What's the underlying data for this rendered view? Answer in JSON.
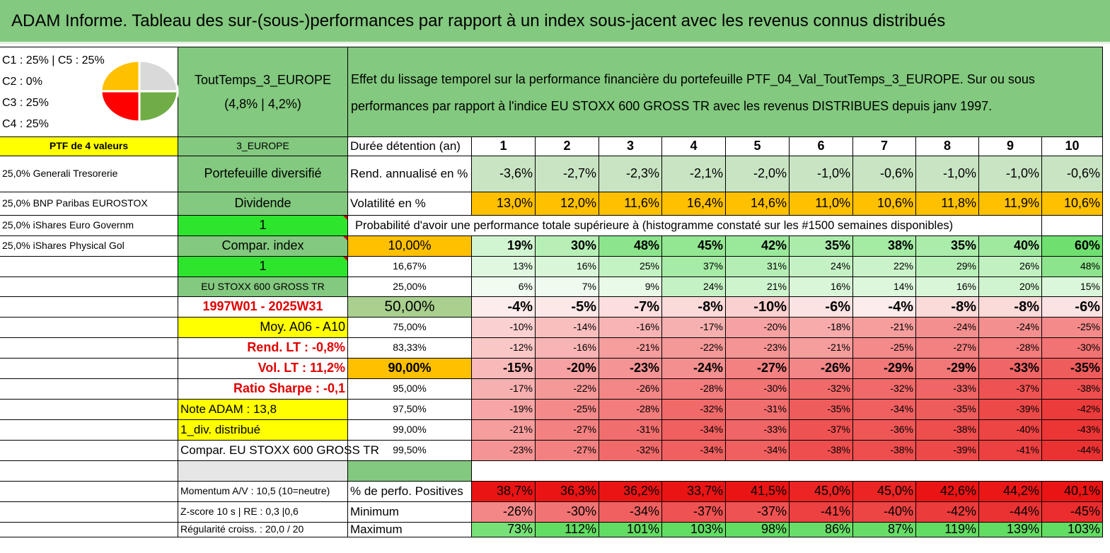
{
  "title": "ADAM Informe. Tableau des sur-(sous-)performances par rapport à un index sous-jacent avec les revenus connus distribués",
  "legend": {
    "lines": [
      "C1 : 25% | C5 : 25%",
      "C2 : 0%",
      "C3 : 25%",
      "C4 : 25%"
    ]
  },
  "pie": {
    "slices": [
      {
        "name": "C1",
        "value": 25,
        "color": "#ffc000"
      },
      {
        "name": "C5",
        "value": 25,
        "color": "#d9d9d9"
      },
      {
        "name": "C4",
        "value": 25,
        "color": "#70ad47"
      },
      {
        "name": "C3",
        "value": 25,
        "color": "#ff0000"
      }
    ]
  },
  "fund": {
    "name": "ToutTemps_3_EUROPE",
    "perf": "(4,8% | 4,2%)"
  },
  "description": "Effet du lissage temporel sur la performance financière du portefeuille PTF_04_Val_ToutTemps_3_EUROPE. Sur ou sous performances par rapport à l'indice EU STOXX 600 GROSS TR avec les revenus DISTRIBUES depuis janv 1997.",
  "colors": {
    "green_header": "#83c97f",
    "yellow": "#ffff00",
    "orange": "#ffc000",
    "bright_green": "#2ee52e",
    "red_text": "#e00000"
  },
  "table": {
    "ptf_label": "PTF de 4 valeurs",
    "region": "3_EUROPE",
    "duration_label": "Durée détention (an)",
    "years": [
      "1",
      "2",
      "3",
      "4",
      "5",
      "6",
      "7",
      "8",
      "9",
      "10"
    ],
    "holdings": [
      "25,0% Generali Tresorerie",
      "25,0% BNP Paribas EUROSTOX",
      "25,0% iShares Euro Governm",
      "25,0% iShares Physical Gol"
    ],
    "rend": {
      "label": "Rend. annualisé en %",
      "values": [
        "-3,6%",
        "-2,7%",
        "-2,3%",
        "-2,1%",
        "-2,0%",
        "-1,0%",
        "-0,6%",
        "-1,0%",
        "-1,0%",
        "-0,6%"
      ]
    },
    "vol": {
      "label": "Volatilité en %",
      "values": [
        "13,0%",
        "12,0%",
        "11,6%",
        "16,4%",
        "14,6%",
        "11,0%",
        "10,6%",
        "11,8%",
        "11,9%",
        "10,6%"
      ]
    },
    "prob_label": "Probabilité d'avoir une performance totale supérieure à (histogramme constaté sur les #1500 semaines disponibles)",
    "mid": {
      "portefeuille": "Portefeuille diversifié",
      "dividende": "Dividende",
      "one_a": "1",
      "compar": "Compar. index",
      "one_b": "1",
      "index": "EU STOXX 600 GROSS TR",
      "period": "1997W01 - 2025W31",
      "moy": "Moy. A06 - A10",
      "rend_lt": "Rend. LT : -0,8%",
      "vol_lt": "Vol. LT : 11,2%",
      "sharpe": "Ratio Sharpe : -0,1",
      "note": "Note ADAM : 13,8",
      "div": "1_div. distribué",
      "compar_full": "Compar. EU STOXX 600 GROSS TR",
      "momentum": "Momentum A/V : 10,5 (10=neutre)",
      "zscore": "Z-score 10 s | RE : 0,3 |0,6",
      "regularite": "Régularité croiss. : 20,0 / 20"
    },
    "percentile_rows": [
      {
        "p": "10,00%",
        "values": [
          "19%",
          "30%",
          "48%",
          "45%",
          "42%",
          "35%",
          "38%",
          "35%",
          "40%",
          "60%"
        ]
      },
      {
        "p": "16,67%",
        "values": [
          "13%",
          "16%",
          "25%",
          "37%",
          "31%",
          "24%",
          "22%",
          "29%",
          "26%",
          "48%"
        ]
      },
      {
        "p": "25,00%",
        "values": [
          "6%",
          "7%",
          "9%",
          "24%",
          "21%",
          "16%",
          "14%",
          "16%",
          "20%",
          "15%"
        ]
      },
      {
        "p": "50,00%",
        "values": [
          "-4%",
          "-5%",
          "-7%",
          "-8%",
          "-10%",
          "-6%",
          "-4%",
          "-8%",
          "-8%",
          "-6%"
        ]
      },
      {
        "p": "75,00%",
        "values": [
          "-10%",
          "-14%",
          "-16%",
          "-17%",
          "-20%",
          "-18%",
          "-21%",
          "-24%",
          "-24%",
          "-25%"
        ]
      },
      {
        "p": "83,33%",
        "values": [
          "-12%",
          "-16%",
          "-21%",
          "-22%",
          "-23%",
          "-21%",
          "-25%",
          "-27%",
          "-28%",
          "-30%"
        ]
      },
      {
        "p": "90,00%",
        "values": [
          "-15%",
          "-20%",
          "-23%",
          "-24%",
          "-27%",
          "-26%",
          "-29%",
          "-29%",
          "-33%",
          "-35%"
        ]
      },
      {
        "p": "95,00%",
        "values": [
          "-17%",
          "-22%",
          "-26%",
          "-28%",
          "-30%",
          "-32%",
          "-32%",
          "-33%",
          "-37%",
          "-38%"
        ]
      },
      {
        "p": "97,50%",
        "values": [
          "-19%",
          "-25%",
          "-28%",
          "-32%",
          "-31%",
          "-35%",
          "-34%",
          "-35%",
          "-39%",
          "-42%"
        ]
      },
      {
        "p": "99,00%",
        "values": [
          "-21%",
          "-27%",
          "-31%",
          "-34%",
          "-33%",
          "-37%",
          "-36%",
          "-38%",
          "-40%",
          "-43%"
        ]
      },
      {
        "p": "99,50%",
        "values": [
          "-23%",
          "-27%",
          "-32%",
          "-34%",
          "-34%",
          "-38%",
          "-38%",
          "-39%",
          "-41%",
          "-44%"
        ]
      }
    ],
    "positives": {
      "label": "% de perfo. Positives",
      "values": [
        "38,7%",
        "36,3%",
        "36,2%",
        "33,7%",
        "41,5%",
        "45,0%",
        "45,0%",
        "42,6%",
        "44,2%",
        "40,1%"
      ]
    },
    "minimum": {
      "label": "Minimum",
      "values": [
        "-26%",
        "-30%",
        "-34%",
        "-37%",
        "-37%",
        "-41%",
        "-40%",
        "-42%",
        "-44%",
        "-45%"
      ]
    },
    "maximum": {
      "label": "Maximum",
      "values": [
        "73%",
        "112%",
        "101%",
        "103%",
        "98%",
        "86%",
        "87%",
        "119%",
        "139%",
        "103%"
      ]
    }
  }
}
